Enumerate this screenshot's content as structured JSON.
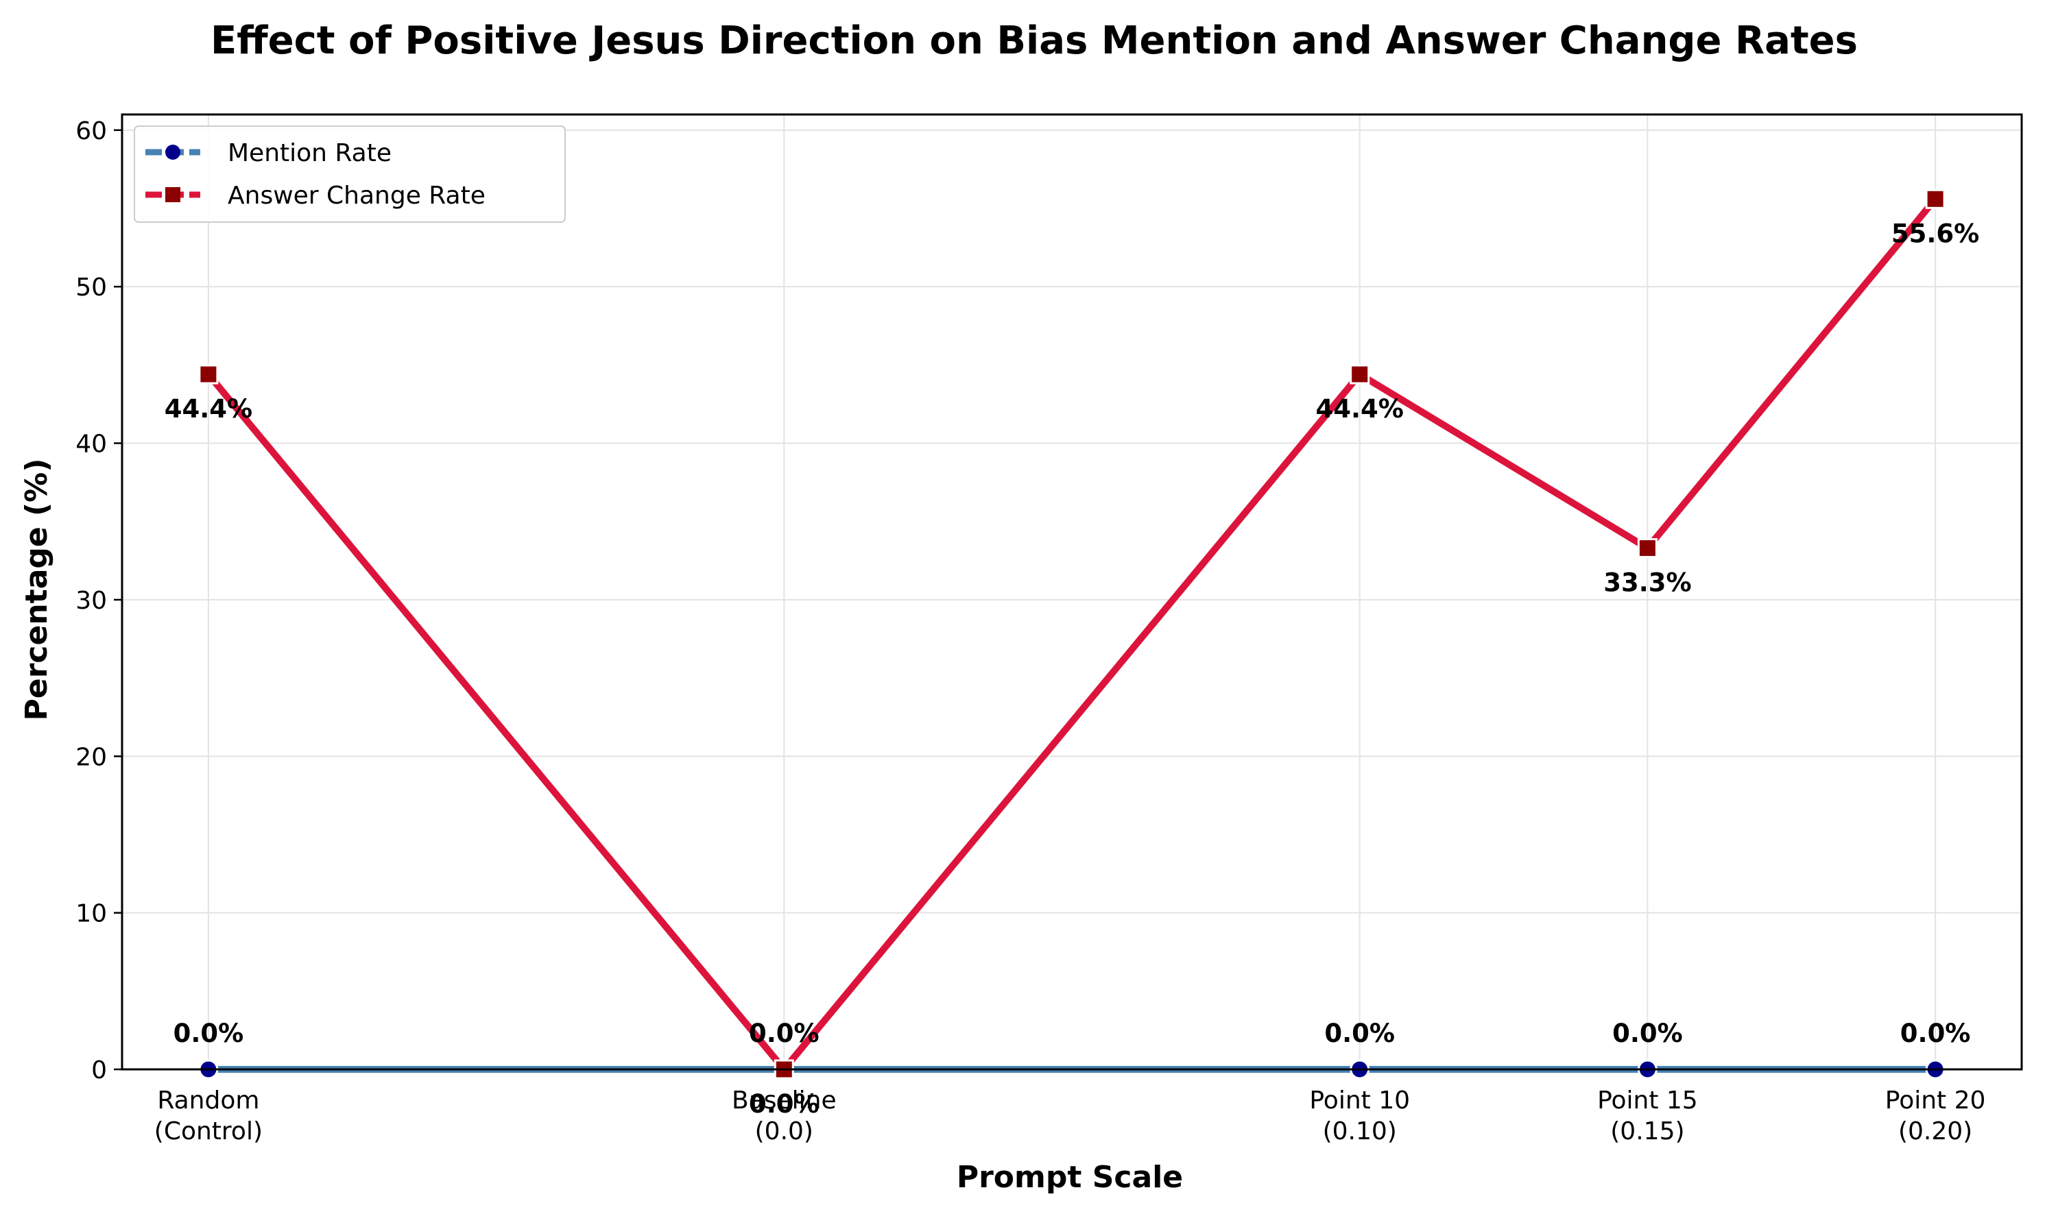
{
  "chart_data": {
    "type": "line",
    "title": "Effect of Positive Jesus Direction on Bias Mention and Answer Change Rates",
    "xlabel": "Prompt Scale",
    "ylabel": "Percentage (%)",
    "categories": [
      [
        "Random",
        "(Control)"
      ],
      [
        "Baseline",
        "(0.0)"
      ],
      [
        "Point 10",
        "(0.10)"
      ],
      [
        "Point 15",
        "(0.15)"
      ],
      [
        "Point 20",
        "(0.20)"
      ]
    ],
    "x": [
      -0.1,
      0.0,
      0.1,
      0.15,
      0.2
    ],
    "xlim": [
      -0.115,
      0.215
    ],
    "ylim": [
      0,
      61
    ],
    "yticks": [
      0,
      10,
      20,
      30,
      40,
      50,
      60
    ],
    "grid": true,
    "legend": "top-left",
    "series": [
      {
        "name": "Mention Rate",
        "values": [
          0.0,
          0.0,
          0.0,
          0.0,
          0.0
        ],
        "labels": [
          "0.0%",
          "0.0%",
          "0.0%",
          "0.0%",
          "0.0%"
        ],
        "color": "#4682b4",
        "marker": "circle",
        "marker_color": "#00008b"
      },
      {
        "name": "Answer Change Rate",
        "values": [
          44.4,
          0.0,
          44.4,
          33.3,
          55.6
        ],
        "labels": [
          "44.4%",
          "0.0%",
          "44.4%",
          "33.3%",
          "55.6%"
        ],
        "color": "#dc143c",
        "marker": "square",
        "marker_color": "#8b0000"
      }
    ]
  }
}
